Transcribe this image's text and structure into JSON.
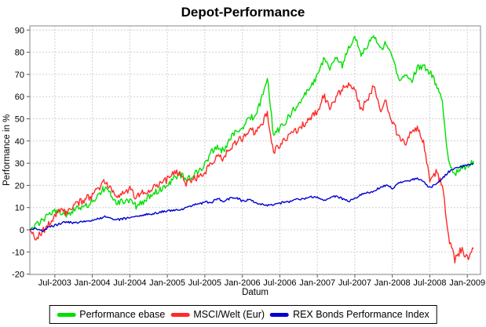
{
  "title": "Depot-Performance",
  "chart_data": {
    "type": "line",
    "title": "Depot-Performance",
    "xlabel": "Datum",
    "ylabel": "Performance in %",
    "ylim": [
      -20,
      92
    ],
    "y_ticks": [
      -20,
      -10,
      0,
      10,
      20,
      30,
      40,
      50,
      60,
      70,
      80,
      90
    ],
    "x_tick_labels": [
      "Jul-2003",
      "Jan-2004",
      "Jul-2004",
      "Jan-2005",
      "Jul-2005",
      "Jan-2006",
      "Jul-2006",
      "Jan-2007",
      "Jul-2007",
      "Jan-2008",
      "Jul-2008",
      "Jan-2009"
    ],
    "x_start": "2003-03",
    "x_resolution": "monthly",
    "grid": "dashed",
    "legend_position": "bottom",
    "plot_border_color": "#8a8a8a",
    "grid_color": "#cfcfcf",
    "series": [
      {
        "name": "Performance ebase",
        "color": "#00e000",
        "values": [
          0,
          2,
          4.5,
          6.5,
          8.5,
          8,
          7,
          9,
          10,
          11,
          12.5,
          16,
          19,
          16,
          12,
          13,
          13.5,
          10.5,
          12,
          14.5,
          17,
          18.5,
          20.5,
          23,
          25,
          22.5,
          24,
          26.5,
          29.5,
          35,
          37,
          35.5,
          41,
          44,
          46,
          50,
          51,
          58,
          69,
          42,
          46,
          49,
          53.5,
          56,
          61,
          65,
          69,
          77,
          72,
          78,
          74,
          82,
          87.5,
          77.5,
          83,
          88,
          81,
          84,
          78.5,
          67,
          70,
          66.5,
          73,
          74,
          71,
          66,
          58,
          30,
          25,
          28,
          28.5,
          31
        ]
      },
      {
        "name": "MSCI/Welt (Eur)",
        "color": "#ff2a2a",
        "values": [
          0,
          -4,
          -1,
          2.5,
          6,
          9,
          7,
          11,
          12.5,
          14,
          15.5,
          18.5,
          22,
          18,
          15,
          16.5,
          18,
          14.5,
          16.5,
          18,
          20,
          21,
          22.5,
          25.5,
          26,
          21,
          22.5,
          24,
          26,
          30,
          33,
          32,
          37,
          39.5,
          41,
          44,
          44.5,
          47,
          52.5,
          35,
          38,
          41,
          43.5,
          45.5,
          48,
          51,
          53.5,
          60.5,
          54.5,
          60,
          63,
          66,
          63,
          53.5,
          59,
          64.5,
          54,
          57.5,
          49,
          42,
          38,
          44,
          46,
          40,
          21,
          25.5,
          20,
          -3,
          -13.5,
          -9,
          -12.5,
          -8.5
        ]
      },
      {
        "name": "REX Bonds Performance Index",
        "color": "#0000d0",
        "values": [
          0,
          0.5,
          -0.5,
          1,
          2,
          3,
          3.5,
          3,
          3.5,
          3.8,
          4.2,
          5,
          5.8,
          5,
          4.5,
          5,
          5.5,
          6,
          6.5,
          7,
          7.5,
          8,
          8.5,
          9,
          8.8,
          10,
          11,
          11.5,
          12.5,
          12.2,
          14,
          13,
          14,
          14.5,
          13,
          13.5,
          12.5,
          11.5,
          11,
          11.5,
          12,
          12.5,
          13,
          13.8,
          14,
          14.8,
          14.6,
          13.2,
          14,
          15.2,
          14,
          12.8,
          14,
          16,
          16.5,
          17.5,
          19,
          20,
          18.7,
          21,
          21.7,
          22.5,
          22.9,
          21.5,
          19,
          20.5,
          23,
          26,
          27.5,
          28.5,
          29.3,
          30
        ]
      }
    ]
  }
}
